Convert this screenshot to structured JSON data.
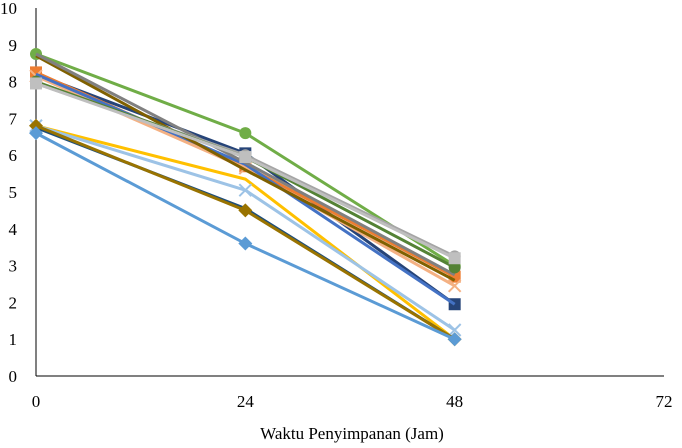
{
  "chart_data": {
    "type": "line",
    "title": "",
    "xlabel": "Waktu  Penyimpanan (Jam)",
    "ylabel": "",
    "x": [
      0,
      24,
      48
    ],
    "xlim": [
      0,
      72
    ],
    "ylim": [
      0,
      10
    ],
    "x_ticks": [
      "0",
      "24",
      "48",
      "72"
    ],
    "y_ticks": [
      "0",
      "1",
      "2",
      "3",
      "4",
      "5",
      "6",
      "7",
      "8",
      "9",
      "10"
    ],
    "grid": false,
    "legend": "none",
    "series": [
      {
        "color": "#70AD47",
        "marker": "circle",
        "values": [
          8.75,
          6.6,
          3.0
        ]
      },
      {
        "color": "#264478",
        "marker": "square",
        "values": [
          8.2,
          6.05,
          1.95
        ]
      },
      {
        "color": "#ED7D31",
        "marker": "square",
        "values": [
          8.25,
          5.7,
          2.7
        ]
      },
      {
        "color": "#F4B183",
        "marker": "x",
        "values": [
          8.15,
          5.65,
          2.45
        ]
      },
      {
        "color": "#4472C4",
        "marker": "line",
        "values": [
          8.2,
          5.75,
          1.95
        ]
      },
      {
        "color": "#7F6000",
        "marker": "line",
        "values": [
          8.7,
          5.6,
          2.6
        ]
      },
      {
        "color": "#808080",
        "marker": "line",
        "values": [
          8.75,
          5.8,
          2.75
        ]
      },
      {
        "color": "#A5A5A5",
        "marker": "circle",
        "values": [
          7.95,
          6.0,
          3.25
        ]
      },
      {
        "color": "#548235",
        "marker": "circle",
        "values": [
          8.0,
          5.95,
          2.95
        ]
      },
      {
        "color": "#BFBFBF",
        "marker": "square",
        "values": [
          7.95,
          5.95,
          3.2
        ]
      },
      {
        "color": "#FFC000",
        "marker": "line",
        "values": [
          6.8,
          5.35,
          1.0
        ]
      },
      {
        "color": "#9DC3E6",
        "marker": "x",
        "values": [
          6.8,
          5.05,
          1.25
        ]
      },
      {
        "color": "#1F4E79",
        "marker": "line",
        "values": [
          6.75,
          4.55,
          1.0
        ]
      },
      {
        "color": "#997300",
        "marker": "diamond",
        "values": [
          6.8,
          4.5,
          1.0
        ]
      },
      {
        "color": "#5B9BD5",
        "marker": "diamond",
        "values": [
          6.6,
          3.6,
          1.0
        ]
      }
    ]
  }
}
